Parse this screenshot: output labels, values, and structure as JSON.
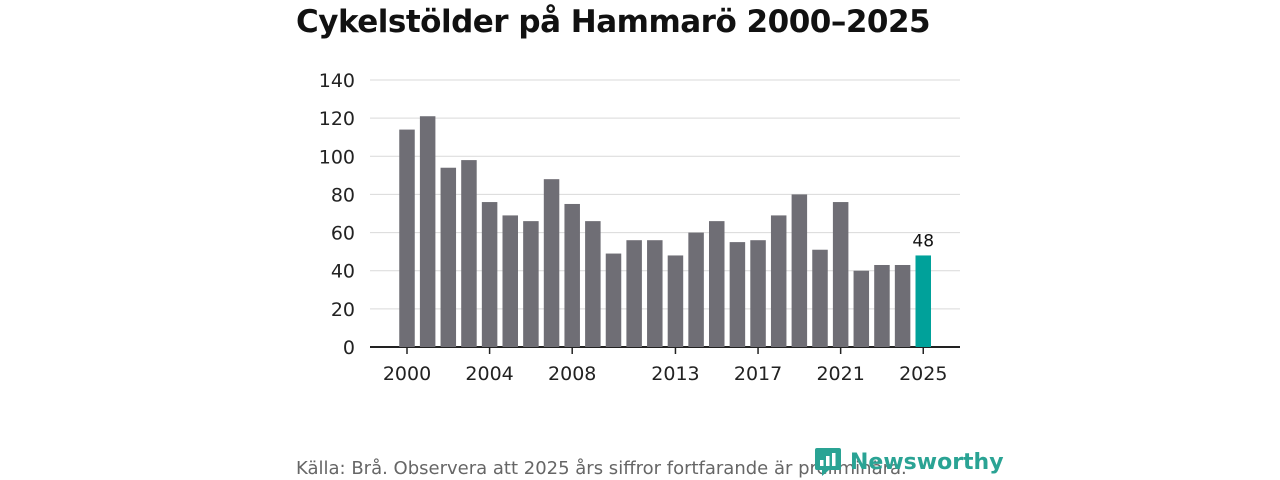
{
  "title": "Cykelstölder på Hammarö 2000–2025",
  "source": "Källa: Brå. Observera att 2025 års siffror fortfarande är preliminära.",
  "brand": {
    "name": "Newsworthy",
    "icon": "newsworthy-logo-icon",
    "color": "#2aa394"
  },
  "colors": {
    "bar": "#6f6e75",
    "highlight": "#00a19a",
    "grid": "#d9d9d9",
    "axis": "#222222"
  },
  "chart_data": {
    "type": "bar",
    "title": "Cykelstölder på Hammarö 2000–2025",
    "xlabel": "",
    "ylabel": "",
    "ylim": [
      0,
      140
    ],
    "yticks": [
      0,
      20,
      40,
      60,
      80,
      100,
      120,
      140
    ],
    "categories": [
      "2000",
      "2001",
      "2002",
      "2003",
      "2004",
      "2005",
      "2006",
      "2007",
      "2008",
      "2009",
      "2010",
      "2011",
      "2012",
      "2013",
      "2014",
      "2015",
      "2016",
      "2017",
      "2018",
      "2019",
      "2020",
      "2021",
      "2022",
      "2023",
      "2024",
      "2025"
    ],
    "values": [
      114,
      121,
      94,
      98,
      76,
      69,
      66,
      88,
      75,
      66,
      49,
      56,
      56,
      48,
      60,
      66,
      55,
      56,
      69,
      80,
      51,
      76,
      40,
      43,
      43,
      48
    ],
    "xtick_labels": [
      "2000",
      "2004",
      "2008",
      "2013",
      "2017",
      "2021",
      "2025"
    ],
    "highlight": {
      "category": "2025",
      "label": "48"
    },
    "grid": true
  }
}
